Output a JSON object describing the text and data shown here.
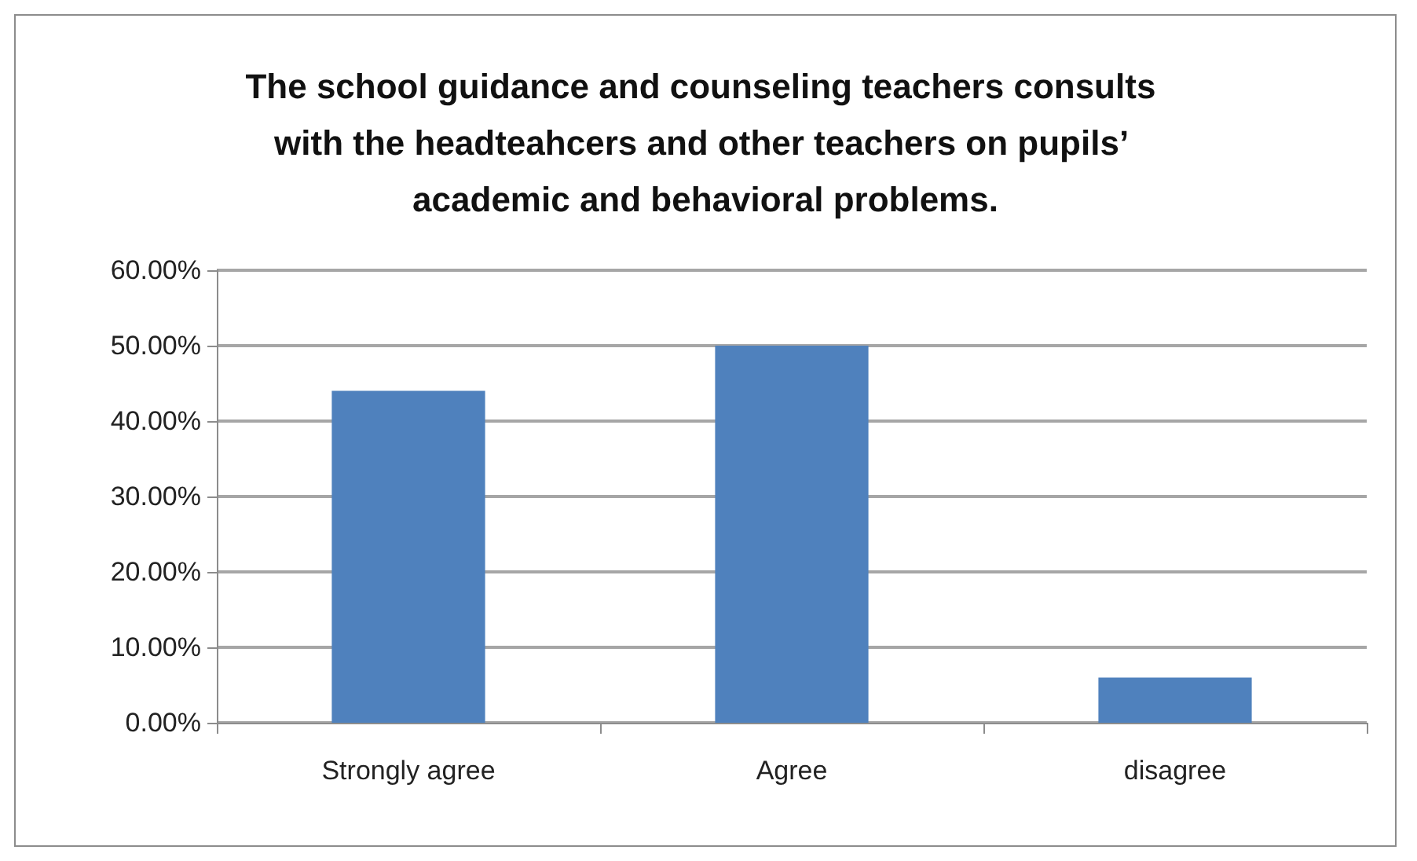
{
  "chart_data": {
    "type": "bar",
    "title": "The school guidance and counseling teachers consults with the headteahcers and other teachers on pupils’ academic and behavioral problems.",
    "categories": [
      "Strongly agree",
      "Agree",
      "disagree"
    ],
    "values": [
      44,
      50,
      6
    ],
    "color": "#4f81bd",
    "ylim": [
      0,
      60
    ],
    "yticks": [
      {
        "value": 0,
        "label": "0.00%"
      },
      {
        "value": 10,
        "label": "10.00%"
      },
      {
        "value": 20,
        "label": "20.00%"
      },
      {
        "value": 30,
        "label": "30.00%"
      },
      {
        "value": 40,
        "label": "40.00%"
      },
      {
        "value": 50,
        "label": "50.00%"
      },
      {
        "value": 60,
        "label": "60.00%"
      }
    ],
    "grid": "y"
  }
}
